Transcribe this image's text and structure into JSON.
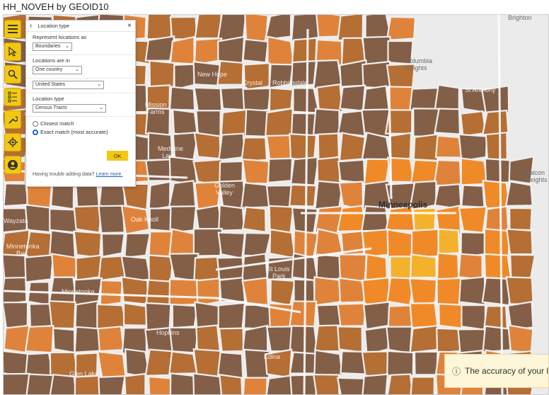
{
  "title": "HH_NOVEH by GEOID10",
  "places": {
    "brighton": "Brighton",
    "columbia_heights": "Columbia\nHeights",
    "falcon_heights": "Falcon\nHeights",
    "new_hope": "New Hope",
    "crystal": "Crystal",
    "robbinsdale": "Robbinsdale",
    "st_anthony": "St Anthony",
    "mission_farms": "Mission\nFarms",
    "medicine_lake": "Medicine\nLake",
    "golden_valley": "Golden\nValley",
    "minneapolis": "Minneapolis",
    "oak_knoll": "Oak Knoll",
    "wayzata": "Wayzata",
    "minnetonka_beach": "Minnetonka\nBeach",
    "st_louis_park": "St Louis\nPark",
    "minnetonka": "Minnetonka",
    "hopkins": "Hopkins",
    "edina": "Edina",
    "glen_lake": "Glen Lake"
  },
  "colors": {
    "dark": "#835f48",
    "medium": "#b56e34",
    "orange": "#e0833a",
    "bright": "#f08a28",
    "gold": "#f4b22c",
    "accent": "#f2c811"
  },
  "toolbar": [
    "menu-icon",
    "cursor-icon",
    "search-icon",
    "legend-icon",
    "wrench-icon",
    "gear-icon",
    "user-icon"
  ],
  "panel": {
    "back": "‹",
    "title": "Location type",
    "close": "×",
    "represent_label": "Represent locations as",
    "represent_value": "Boundaries",
    "locations_in_label": "Locations are in",
    "locations_in_value": "One country",
    "country_value": "United States",
    "location_type_label": "Location type",
    "location_type_value": "Census Tracts",
    "radio_closest": "Closest match",
    "radio_exact": "Exact match (most accurate)",
    "ok": "OK",
    "help_text": "Having trouble adding data?",
    "help_link": "Learn more."
  },
  "toast": {
    "icon": "ⓘ",
    "text": "The accuracy of your l"
  }
}
